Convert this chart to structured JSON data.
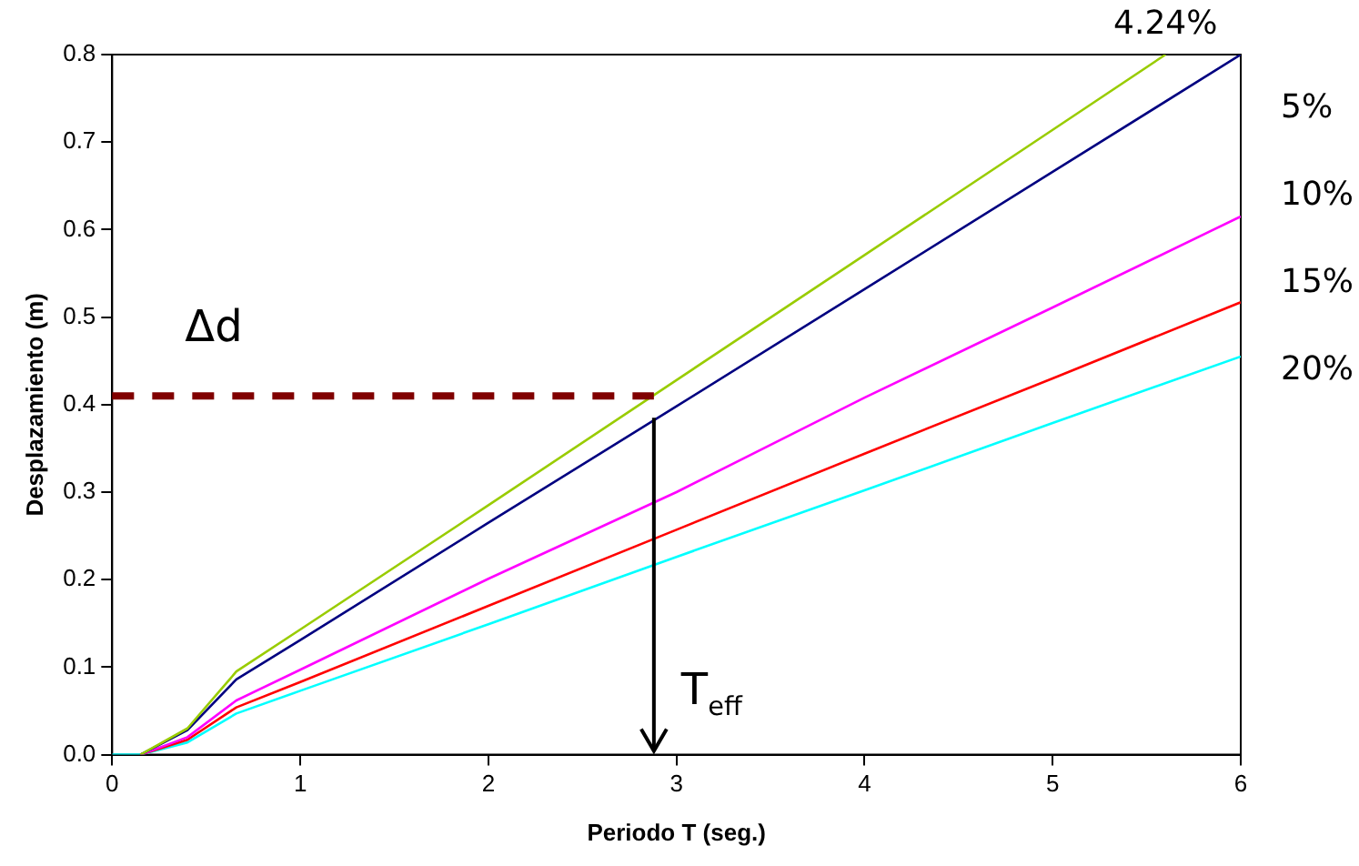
{
  "chart_data": {
    "type": "line",
    "xlabel": "Periodo T (seg.)",
    "ylabel": "Desplazamiento (m)",
    "xlim": [
      0,
      6
    ],
    "xticks": [
      0,
      1,
      2,
      3,
      4,
      5,
      6
    ],
    "ylim": [
      0,
      0.8
    ],
    "yticks": [
      {
        "value": 0,
        "label": "0.0"
      },
      0.1,
      0.2,
      0.3,
      0.4,
      0.5,
      0.6,
      0.7,
      0.8
    ],
    "grid": false,
    "legend": false,
    "marker": "none",
    "line_style": "solid",
    "series": [
      {
        "name": "4.24%",
        "color": "#99cc00",
        "x": [
          0.15,
          0.4,
          0.66,
          1,
          2,
          3,
          4,
          5,
          5.6
        ],
        "values": [
          0,
          0.03,
          0.095,
          0.143,
          0.285,
          0.428,
          0.571,
          0.714,
          0.8
        ]
      },
      {
        "name": "5%",
        "color": "#000080",
        "x": [
          0.15,
          0.4,
          0.66,
          1,
          2,
          3,
          4,
          5,
          6
        ],
        "values": [
          0,
          0.028,
          0.086,
          0.131,
          0.265,
          0.398,
          0.532,
          0.666,
          0.8
        ]
      },
      {
        "name": "10%",
        "color": "#ff00ff",
        "x": [
          0.15,
          0.4,
          0.66,
          1,
          2,
          3,
          4,
          5,
          6
        ],
        "values": [
          0,
          0.02,
          0.062,
          0.097,
          0.201,
          0.3,
          0.408,
          0.511,
          0.615
        ]
      },
      {
        "name": "15%",
        "color": "#ff0000",
        "x": [
          0.15,
          0.4,
          0.66,
          1,
          2,
          3,
          4,
          5,
          6
        ],
        "values": [
          0,
          0.017,
          0.054,
          0.083,
          0.17,
          0.257,
          0.344,
          0.43,
          0.517
        ]
      },
      {
        "name": "20%",
        "color": "#00ffff",
        "x": [
          0,
          0.15,
          0.4,
          0.66,
          1,
          2,
          3,
          4,
          5,
          6
        ],
        "values": [
          0,
          0,
          0.014,
          0.047,
          0.073,
          0.149,
          0.226,
          0.302,
          0.379,
          0.455
        ]
      }
    ],
    "ref_lines": [
      {
        "axis": "y",
        "value": 0.41,
        "label": "Δd",
        "color": "#800000",
        "line_style": "dashed"
      },
      {
        "axis": "x",
        "value": 2.88,
        "label": "T$_{eff}$",
        "color": "#000000",
        "line_style": "solid"
      }
    ]
  }
}
